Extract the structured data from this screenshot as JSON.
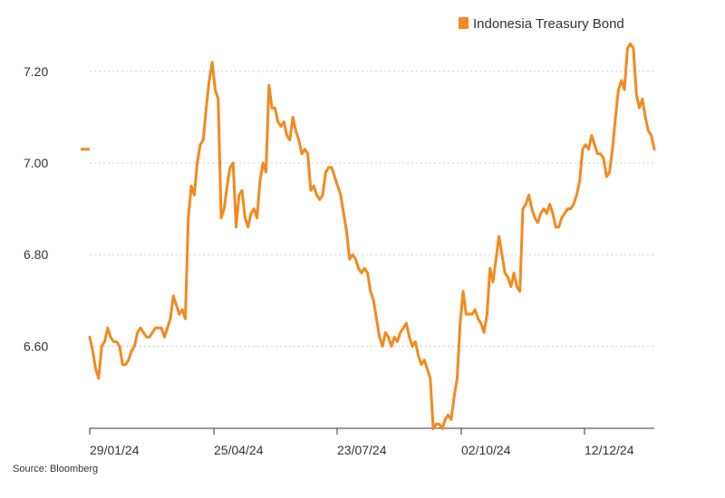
{
  "chart_data": {
    "type": "line",
    "title": "",
    "xlabel": "",
    "ylabel": "",
    "x_tick_labels": [
      "29/01/24",
      "25/04/24",
      "23/07/24",
      "02/10/24",
      "12/12/24"
    ],
    "y_ticks": [
      6.6,
      6.8,
      7.0,
      7.2
    ],
    "y_tick_labels": [
      "6.60",
      "6.80",
      "7.00",
      "7.20"
    ],
    "ylim": [
      6.41,
      7.27
    ],
    "grid": "horizontal dotted",
    "legend_position": "top-right",
    "series": [
      {
        "name": "Indonesia Treasury Bond",
        "color": "#F28A1E",
        "values": [
          6.62,
          6.59,
          6.55,
          6.53,
          6.6,
          6.61,
          6.64,
          6.62,
          6.61,
          6.61,
          6.6,
          6.56,
          6.56,
          6.57,
          6.59,
          6.6,
          6.63,
          6.64,
          6.63,
          6.62,
          6.62,
          6.63,
          6.64,
          6.64,
          6.64,
          6.62,
          6.64,
          6.66,
          6.71,
          6.69,
          6.67,
          6.68,
          6.66,
          6.88,
          6.95,
          6.93,
          7.0,
          7.04,
          7.05,
          7.12,
          7.18,
          7.22,
          7.16,
          7.14,
          6.88,
          6.9,
          6.95,
          6.99,
          7.0,
          6.86,
          6.93,
          6.94,
          6.88,
          6.86,
          6.89,
          6.9,
          6.88,
          6.96,
          7.0,
          6.98,
          7.17,
          7.12,
          7.12,
          7.09,
          7.08,
          7.09,
          7.06,
          7.05,
          7.1,
          7.07,
          7.05,
          7.02,
          7.03,
          7.02,
          6.94,
          6.95,
          6.93,
          6.92,
          6.93,
          6.98,
          6.99,
          6.99,
          6.97,
          6.95,
          6.93,
          6.89,
          6.85,
          6.79,
          6.8,
          6.79,
          6.77,
          6.76,
          6.77,
          6.76,
          6.72,
          6.7,
          6.66,
          6.62,
          6.6,
          6.63,
          6.62,
          6.6,
          6.62,
          6.61,
          6.63,
          6.64,
          6.65,
          6.62,
          6.6,
          6.61,
          6.58,
          6.56,
          6.57,
          6.55,
          6.53,
          6.42,
          6.43,
          6.43,
          6.42,
          6.44,
          6.45,
          6.44,
          6.49,
          6.53,
          6.65,
          6.72,
          6.67,
          6.67,
          6.67,
          6.68,
          6.66,
          6.65,
          6.63,
          6.67,
          6.77,
          6.74,
          6.79,
          6.84,
          6.8,
          6.76,
          6.75,
          6.73,
          6.76,
          6.73,
          6.72,
          6.9,
          6.91,
          6.93,
          6.9,
          6.88,
          6.87,
          6.89,
          6.9,
          6.89,
          6.91,
          6.89,
          6.86,
          6.86,
          6.88,
          6.89,
          6.9,
          6.9,
          6.91,
          6.93,
          6.96,
          7.03,
          7.04,
          7.03,
          7.06,
          7.04,
          7.02,
          7.02,
          7.01,
          6.97,
          6.98,
          7.03,
          7.1,
          7.16,
          7.18,
          7.16,
          7.25,
          7.26,
          7.25,
          7.15,
          7.12,
          7.14,
          7.1,
          7.07,
          7.06,
          7.03
        ]
      }
    ]
  },
  "legend": {
    "label": "Indonesia Treasury Bond",
    "color": "#F28A1E"
  },
  "source": "Source: Bloomberg"
}
